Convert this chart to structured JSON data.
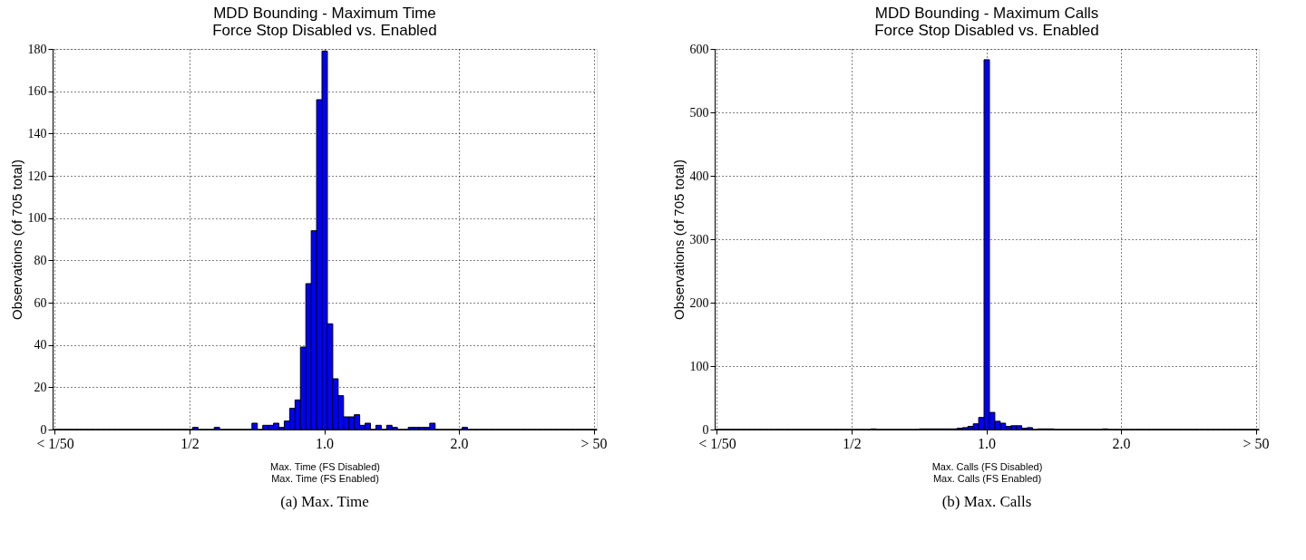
{
  "chart_data": [
    {
      "type": "bar",
      "title": "MDD Bounding - Maximum Time\nForce Stop Disabled vs. Enabled",
      "xlabel": "Max. Time (FS Disabled)\nMax. Time (FS Enabled)",
      "ylabel": "Observations (of 705 total)",
      "color": "#0000ff",
      "categories": [
        "< 1/50",
        null,
        null,
        null,
        null,
        null,
        null,
        null,
        null,
        null,
        null,
        null,
        null,
        null,
        null,
        null,
        null,
        null,
        null,
        null,
        null,
        null,
        null,
        null,
        null,
        "1/2",
        null,
        null,
        null,
        null,
        null,
        null,
        null,
        null,
        null,
        null,
        null,
        null,
        null,
        null,
        null,
        null,
        null,
        null,
        null,
        null,
        null,
        null,
        null,
        null,
        "1.0",
        null,
        null,
        null,
        null,
        null,
        null,
        null,
        null,
        null,
        null,
        null,
        null,
        null,
        null,
        null,
        null,
        null,
        null,
        null,
        null,
        null,
        null,
        null,
        null,
        "2.0",
        null,
        null,
        null,
        null,
        null,
        null,
        null,
        null,
        null,
        null,
        null,
        null,
        null,
        null,
        null,
        null,
        null,
        null,
        null,
        null,
        null,
        null,
        null,
        null,
        "> 50"
      ],
      "values": [
        0,
        0,
        0,
        0,
        0,
        0,
        0,
        0,
        0,
        0,
        0,
        0,
        0,
        0,
        0,
        0,
        0,
        0,
        0,
        0,
        0,
        0,
        0,
        0,
        0,
        0,
        1,
        0,
        0,
        0,
        1,
        0,
        0,
        0,
        0,
        0,
        0,
        3,
        0,
        2,
        2,
        3,
        1,
        4,
        10,
        14,
        39,
        69,
        94,
        156,
        179,
        50,
        24,
        16,
        6,
        6,
        7,
        2,
        3,
        0,
        2,
        0,
        2,
        1,
        0,
        0,
        1,
        1,
        1,
        1,
        3,
        0,
        0,
        0,
        0,
        0,
        1,
        0,
        0,
        0,
        0,
        0,
        0,
        0,
        0,
        0,
        0,
        0,
        0,
        0,
        0,
        0,
        0,
        0,
        0,
        0,
        0,
        0,
        0,
        0,
        0
      ],
      "ylim": [
        0,
        180
      ],
      "yticks": [
        0,
        20,
        40,
        60,
        80,
        100,
        120,
        140,
        160,
        180
      ],
      "grid": true,
      "annotations": [
        "(a) Max. Time"
      ]
    },
    {
      "type": "bar",
      "title": "MDD Bounding - Maximum Calls\nForce Stop Disabled vs. Enabled",
      "xlabel": "Max. Calls (FS Disabled)\nMax. Calls (FS Enabled)",
      "ylabel": "Observations (of 705 total)",
      "color": "#0000ff",
      "categories": [
        "< 1/50",
        null,
        null,
        null,
        null,
        null,
        null,
        null,
        null,
        null,
        null,
        null,
        null,
        null,
        null,
        null,
        null,
        null,
        null,
        null,
        null,
        null,
        null,
        null,
        null,
        "1/2",
        null,
        null,
        null,
        null,
        null,
        null,
        null,
        null,
        null,
        null,
        null,
        null,
        null,
        null,
        null,
        null,
        null,
        null,
        null,
        null,
        null,
        null,
        null,
        null,
        "1.0",
        null,
        null,
        null,
        null,
        null,
        null,
        null,
        null,
        null,
        null,
        null,
        null,
        null,
        null,
        null,
        null,
        null,
        null,
        null,
        null,
        null,
        null,
        null,
        null,
        "2.0",
        null,
        null,
        null,
        null,
        null,
        null,
        null,
        null,
        null,
        null,
        null,
        null,
        null,
        null,
        null,
        null,
        null,
        null,
        null,
        null,
        null,
        null,
        null,
        null,
        "> 50"
      ],
      "values": [
        0,
        0,
        0,
        0,
        0,
        0,
        0,
        0,
        0,
        0,
        0,
        0,
        0,
        0,
        0,
        0,
        0,
        0,
        0,
        0,
        0,
        0,
        0,
        0,
        0,
        0,
        0,
        0,
        0,
        1,
        0,
        0,
        0,
        0,
        0,
        0,
        0,
        0,
        1,
        1,
        1,
        1,
        1,
        1,
        1,
        2,
        3,
        5,
        9,
        19,
        583,
        27,
        13,
        10,
        5,
        6,
        6,
        2,
        3,
        0,
        1,
        1,
        1,
        0,
        0,
        0,
        0,
        0,
        0,
        0,
        0,
        0,
        1,
        0,
        0,
        0,
        0,
        0,
        0,
        0,
        0,
        0,
        0,
        0,
        0,
        0,
        0,
        0,
        0,
        0,
        0,
        0,
        0,
        0,
        0,
        0,
        0,
        0,
        0,
        0,
        0
      ],
      "ylim": [
        0,
        600
      ],
      "yticks": [
        0,
        100,
        200,
        300,
        400,
        500,
        600
      ],
      "grid": true,
      "annotations": [
        "(b) Max. Calls"
      ]
    }
  ]
}
